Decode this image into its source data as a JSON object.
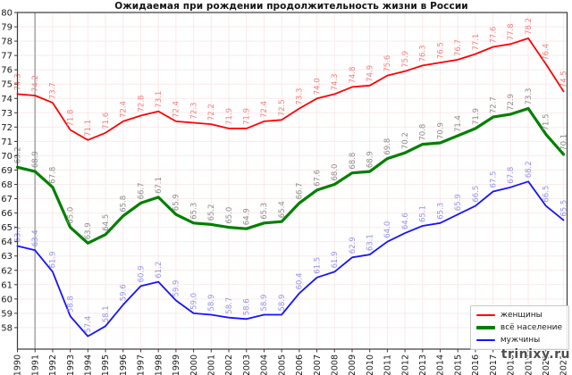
{
  "title": "Ожидаемая при рождении продолжительность жизни в России",
  "watermark": "trinixy.ru",
  "colors": {
    "grid": "#fbe9e9",
    "event_line": "#b0b0b0",
    "axis": "#3a3a3a",
    "tick_text": "#1a1a1a"
  },
  "legend": {
    "items": [
      {
        "label": "женщины",
        "color": "#ff0000",
        "thickness": 2
      },
      {
        "label": "всё население",
        "color": "#008000",
        "thickness": 4
      },
      {
        "label": "мужчины",
        "color": "#1414ff",
        "thickness": 2
      }
    ]
  },
  "chart_data": {
    "type": "line",
    "title": "Ожидаемая при рождении продолжительность жизни в России",
    "xlabel": "",
    "ylabel": "",
    "x": [
      1990,
      1991,
      1992,
      1993,
      1994,
      1995,
      1996,
      1997,
      1998,
      1999,
      2000,
      2001,
      2002,
      2003,
      2004,
      2005,
      2006,
      2007,
      2008,
      2009,
      2010,
      2011,
      2012,
      2013,
      2014,
      2015,
      2016,
      2017,
      2018,
      2019,
      2020,
      2021
    ],
    "ylim": [
      56.5,
      80
    ],
    "yticks": [
      58,
      59,
      60,
      61,
      62,
      63,
      64,
      65,
      66,
      67,
      68,
      69,
      70,
      71,
      72,
      73,
      74,
      75,
      76,
      77,
      78,
      79,
      80
    ],
    "grid": true,
    "legend_position": "lower right",
    "event_line_x": 1991,
    "data_labels": true,
    "series": [
      {
        "name": "женщины",
        "slug": "women",
        "line_color": "#ff0000",
        "label_color": "#f28080",
        "line_width": 1.8,
        "values": [
          74.3,
          74.2,
          73.7,
          71.8,
          71.1,
          71.6,
          72.4,
          72.8,
          73.1,
          72.4,
          72.3,
          72.2,
          71.9,
          71.9,
          72.4,
          72.5,
          73.3,
          74.0,
          74.3,
          74.8,
          74.9,
          75.6,
          75.9,
          76.3,
          76.5,
          76.7,
          77.1,
          77.6,
          77.8,
          78.2,
          76.4,
          74.5
        ]
      },
      {
        "name": "всё население",
        "slug": "all-population",
        "line_color": "#008000",
        "label_color": "#8c8c8c",
        "line_width": 3.2,
        "values": [
          69.2,
          68.9,
          67.8,
          65.0,
          63.9,
          64.5,
          65.8,
          66.7,
          67.1,
          65.9,
          65.3,
          65.2,
          65.0,
          64.9,
          65.3,
          65.4,
          66.7,
          67.6,
          68.0,
          68.8,
          68.9,
          69.8,
          70.2,
          70.8,
          70.9,
          71.4,
          71.9,
          72.7,
          72.9,
          73.3,
          71.5,
          70.1
        ]
      },
      {
        "name": "мужчины",
        "slug": "men",
        "line_color": "#1414ff",
        "label_color": "#9393e6",
        "line_width": 1.8,
        "values": [
          63.7,
          63.4,
          61.9,
          58.8,
          57.4,
          58.1,
          59.6,
          60.9,
          61.2,
          59.9,
          59.0,
          58.9,
          58.7,
          58.6,
          58.9,
          58.9,
          60.4,
          61.5,
          61.9,
          62.9,
          63.1,
          64.0,
          64.6,
          65.1,
          65.3,
          65.9,
          66.5,
          67.5,
          67.8,
          68.2,
          66.5,
          65.5
        ]
      }
    ]
  }
}
